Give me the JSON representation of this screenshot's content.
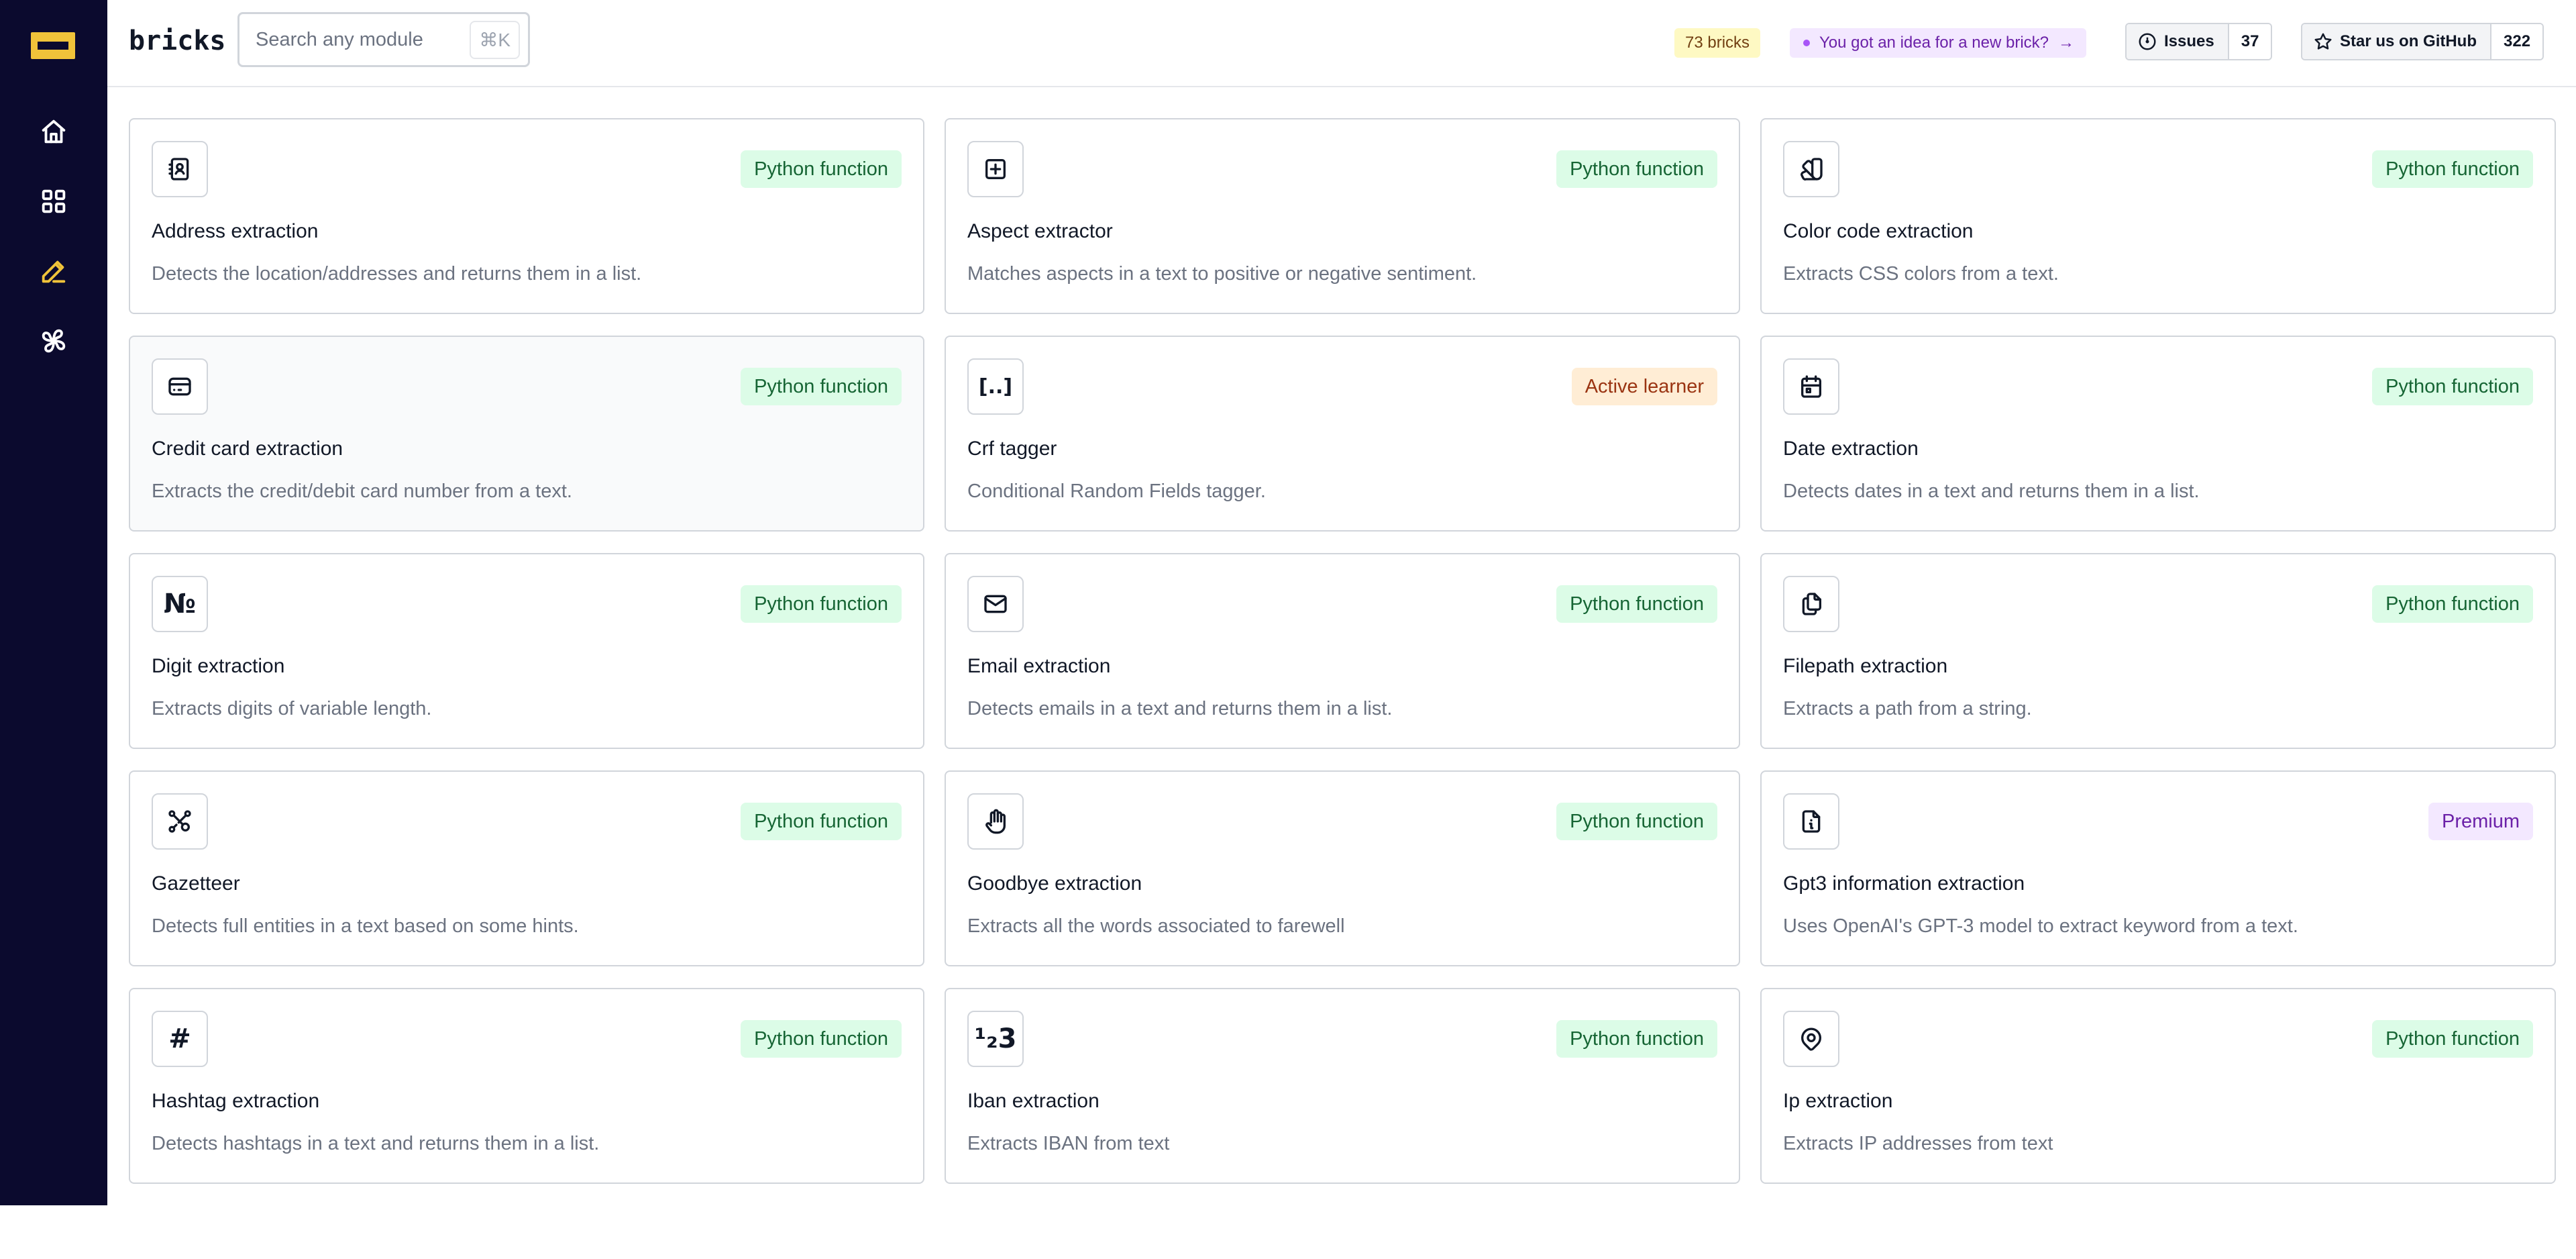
{
  "app": {
    "brand": "bricks"
  },
  "sidebar": {
    "items": [
      {
        "name": "home-icon"
      },
      {
        "name": "modules-grid-icon"
      },
      {
        "name": "edit-icon",
        "active": true
      },
      {
        "name": "community-icon"
      }
    ],
    "active_color": "#f0c33a"
  },
  "header": {
    "search_placeholder": "Search any module",
    "search_shortcut": "⌘K",
    "bricks_count": "73 bricks",
    "idea_label": "You got an idea for a new brick?",
    "idea_arrow": "→",
    "issues_label": "Issues",
    "issues_count": "37",
    "star_label": "Star us on GitHub",
    "star_count": "322"
  },
  "cards": [
    {
      "title": "Address extraction",
      "description": "Detects the location/addresses and returns them in a list.",
      "tag": "Python function",
      "tag_type": "python",
      "icon": "address-book-icon"
    },
    {
      "title": "Aspect extractor",
      "description": "Matches aspects in a text to positive or negative sentiment.",
      "tag": "Python function",
      "tag_type": "python",
      "icon": "square-plus-icon"
    },
    {
      "title": "Color code extraction",
      "description": "Extracts CSS colors from a text.",
      "tag": "Python function",
      "tag_type": "python",
      "icon": "color-swatch-icon"
    },
    {
      "title": "Credit card extraction",
      "description": "Extracts the credit/debit card number from a text.",
      "tag": "Python function",
      "tag_type": "python",
      "icon": "credit-card-icon"
    },
    {
      "title": "Crf tagger",
      "description": "Conditional Random Fields tagger.",
      "tag": "Active learner",
      "tag_type": "active",
      "icon": "brackets-dots-icon",
      "glyph": "[..]"
    },
    {
      "title": "Date extraction",
      "description": "Detects dates in a text and returns them in a list.",
      "tag": "Python function",
      "tag_type": "python",
      "icon": "calendar-icon"
    },
    {
      "title": "Digit extraction",
      "description": "Extracts digits of variable length.",
      "tag": "Python function",
      "tag_type": "python",
      "icon": "numero-icon",
      "glyph": "№"
    },
    {
      "title": "Email extraction",
      "description": "Detects emails in a text and returns them in a list.",
      "tag": "Python function",
      "tag_type": "python",
      "icon": "mail-icon"
    },
    {
      "title": "Filepath extraction",
      "description": "Extracts a path from a string.",
      "tag": "Python function",
      "tag_type": "python",
      "icon": "files-icon"
    },
    {
      "title": "Gazetteer",
      "description": "Detects full entities in a text based on some hints.",
      "tag": "Python function",
      "tag_type": "python",
      "icon": "affiliate-icon"
    },
    {
      "title": "Goodbye extraction",
      "description": "Extracts all the words associated to farewell",
      "tag": "Python function",
      "tag_type": "python",
      "icon": "hand-wave-icon"
    },
    {
      "title": "Gpt3 information extraction",
      "description": "Uses OpenAI's GPT-3 model to extract keyword from a text.",
      "tag": "Premium",
      "tag_type": "premium",
      "icon": "file-info-icon"
    },
    {
      "title": "Hashtag extraction",
      "description": "Detects hashtags in a text and returns them in a list.",
      "tag": "Python function",
      "tag_type": "python",
      "icon": "hashtag-icon",
      "glyph": "#"
    },
    {
      "title": "Iban extraction",
      "description": "Extracts IBAN from text",
      "tag": "Python function",
      "tag_type": "python",
      "icon": "numbers-icon",
      "glyph": "¹₂3"
    },
    {
      "title": "Ip extraction",
      "description": "Extracts IP addresses from text",
      "tag": "Python function",
      "tag_type": "python",
      "icon": "map-pin-icon"
    }
  ]
}
